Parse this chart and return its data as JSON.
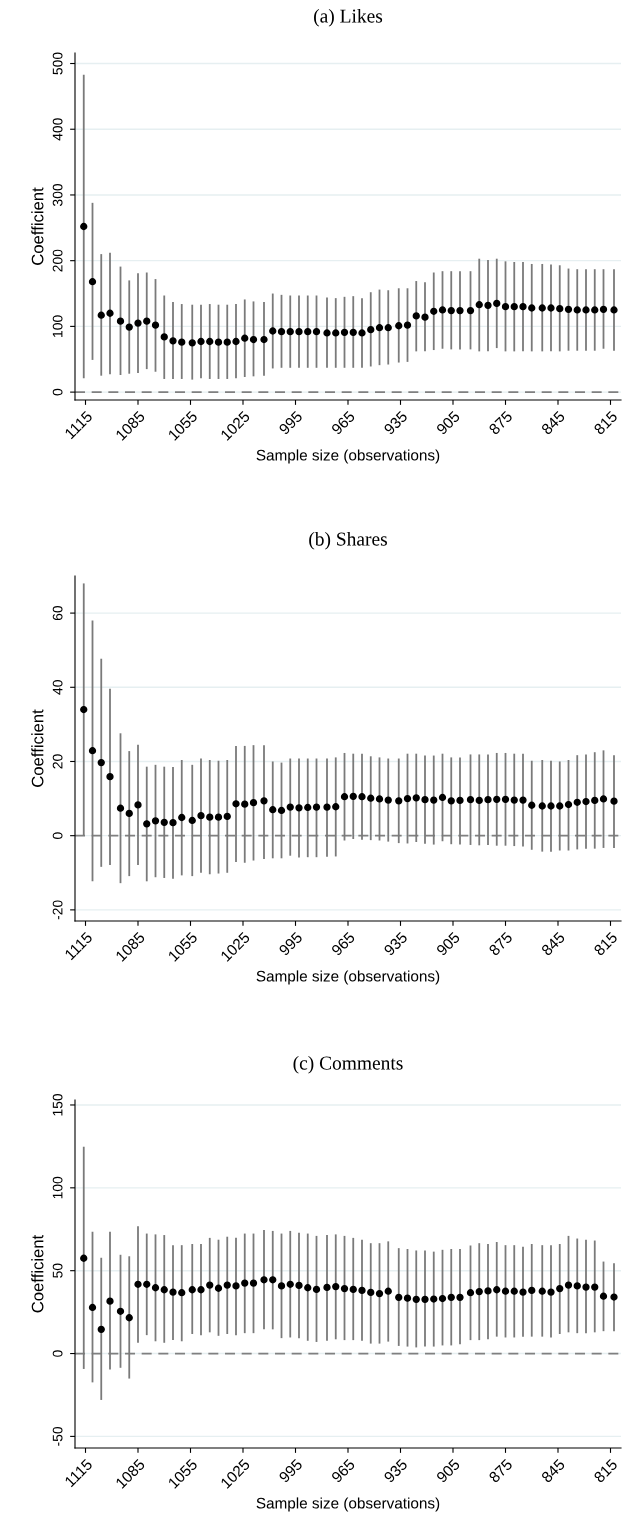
{
  "chart_data": [
    {
      "type": "scatter",
      "title": "(a) Likes",
      "xlabel": "Sample size (observations)",
      "ylabel": "Coefficient",
      "x": [
        1116,
        1111,
        1106,
        1101,
        1095,
        1090,
        1085,
        1080,
        1075,
        1070,
        1065,
        1060,
        1054,
        1049,
        1044,
        1039,
        1034,
        1029,
        1024,
        1019,
        1013,
        1008,
        1003,
        998,
        993,
        988,
        983,
        977,
        972,
        967,
        962,
        957,
        952,
        947,
        942,
        936,
        931,
        926,
        921,
        916,
        911,
        906,
        901,
        895,
        890,
        885,
        880,
        875,
        870,
        865,
        860,
        854,
        849,
        844,
        839,
        834,
        829,
        824,
        819,
        813
      ],
      "series": [
        {
          "color": "#000000",
          "values": [
            252,
            168,
            117,
            120,
            108,
            99,
            105,
            108,
            102,
            84,
            78,
            76,
            75,
            77,
            77,
            76,
            76,
            77,
            82,
            80,
            80,
            93,
            92,
            92,
            92,
            92,
            92,
            90,
            90,
            91,
            91,
            90,
            95,
            98,
            98,
            101,
            102,
            116,
            114,
            123,
            125,
            124,
            124,
            124,
            133,
            132,
            135,
            130,
            130,
            130,
            128,
            128,
            128,
            127,
            126,
            125,
            125,
            125,
            126,
            125
          ],
          "errors": [
            [
              21,
              483
            ],
            [
              49,
              288
            ],
            [
              25,
              210
            ],
            [
              27,
              212
            ],
            [
              26,
              191
            ],
            [
              28,
              170
            ],
            [
              29,
              181
            ],
            [
              35,
              182
            ],
            [
              31,
              172
            ],
            [
              20,
              147
            ],
            [
              20,
              137
            ],
            [
              20,
              134
            ],
            [
              19,
              133
            ],
            [
              21,
              133
            ],
            [
              20,
              134
            ],
            [
              20,
              133
            ],
            [
              20,
              133
            ],
            [
              21,
              134
            ],
            [
              23,
              141
            ],
            [
              24,
              138
            ],
            [
              25,
              137
            ],
            [
              36,
              150
            ],
            [
              37,
              148
            ],
            [
              37,
              147
            ],
            [
              37,
              147
            ],
            [
              37,
              147
            ],
            [
              37,
              147
            ],
            [
              37,
              144
            ],
            [
              37,
              143
            ],
            [
              37,
              145
            ],
            [
              37,
              146
            ],
            [
              37,
              143
            ],
            [
              39,
              152
            ],
            [
              41,
              156
            ],
            [
              42,
              155
            ],
            [
              45,
              158
            ],
            [
              46,
              158
            ],
            [
              62,
              169
            ],
            [
              62,
              167
            ],
            [
              64,
              182
            ],
            [
              66,
              184
            ],
            [
              65,
              184
            ],
            [
              65,
              184
            ],
            [
              65,
              184
            ],
            [
              62,
              203
            ],
            [
              62,
              201
            ],
            [
              67,
              203
            ],
            [
              62,
              199
            ],
            [
              62,
              198
            ],
            [
              62,
              198
            ],
            [
              62,
              195
            ],
            [
              62,
              195
            ],
            [
              62,
              194
            ],
            [
              62,
              193
            ],
            [
              63,
              188
            ],
            [
              63,
              187
            ],
            [
              63,
              187
            ],
            [
              63,
              187
            ],
            [
              66,
              187
            ],
            [
              63,
              187
            ]
          ]
        }
      ],
      "xlim": [
        1121,
        809
      ],
      "xticks": [
        1115,
        1085,
        1055,
        1025,
        995,
        965,
        935,
        905,
        875,
        845,
        815
      ],
      "ylim": [
        -12,
        516
      ],
      "yticks": [
        0,
        100,
        200,
        300,
        400,
        500
      ],
      "ref_lines": [
        {
          "axis": "y",
          "value": 0,
          "color": "#808080",
          "line_style": "dashed"
        }
      ],
      "grid": "y",
      "marker": "circle"
    },
    {
      "type": "scatter",
      "title": "(b) Shares",
      "xlabel": "Sample size (observations)",
      "ylabel": "Coefficient",
      "x": [
        1116,
        1111,
        1106,
        1101,
        1095,
        1090,
        1085,
        1080,
        1075,
        1070,
        1065,
        1060,
        1054,
        1049,
        1044,
        1039,
        1034,
        1029,
        1024,
        1019,
        1013,
        1008,
        1003,
        998,
        993,
        988,
        983,
        977,
        972,
        967,
        962,
        957,
        952,
        947,
        942,
        936,
        931,
        926,
        921,
        916,
        911,
        906,
        901,
        895,
        890,
        885,
        880,
        875,
        870,
        865,
        860,
        854,
        849,
        844,
        839,
        834,
        829,
        824,
        819,
        813
      ],
      "series": [
        {
          "color": "#000000",
          "values": [
            34,
            22.9,
            19.7,
            15.9,
            7.4,
            6,
            8.3,
            3.2,
            4,
            3.6,
            3.5,
            4.9,
            4.1,
            5.4,
            5,
            5,
            5.2,
            8.6,
            8.5,
            8.9,
            9.4,
            7,
            6.8,
            7.7,
            7.5,
            7.6,
            7.7,
            7.7,
            7.8,
            10.5,
            10.6,
            10.5,
            10.1,
            9.9,
            9.6,
            9.4,
            10.0,
            10.2,
            9.7,
            9.6,
            10.3,
            9.4,
            9.5,
            9.7,
            9.5,
            9.7,
            9.8,
            9.8,
            9.6,
            9.6,
            8.2,
            8.0,
            8.0,
            8.0,
            8.4,
            9.0,
            9.2,
            9.5,
            9.9,
            9.3
          ],
          "errors": [
            [
              0,
              68
            ],
            [
              -12.3,
              58
            ],
            [
              -8.4,
              47.7
            ],
            [
              -7.9,
              39.6
            ],
            [
              -12.8,
              27.6
            ],
            [
              -10.9,
              22.8
            ],
            [
              -7.9,
              24.5
            ],
            [
              -12.3,
              18.6
            ],
            [
              -11.2,
              19.1
            ],
            [
              -11.4,
              18.6
            ],
            [
              -11.6,
              18.5
            ],
            [
              -10.7,
              20.4
            ],
            [
              -10.9,
              19.1
            ],
            [
              -10,
              20.8
            ],
            [
              -10.4,
              20.4
            ],
            [
              -10.2,
              20.2
            ],
            [
              -10,
              20.4
            ],
            [
              -7.1,
              24.2
            ],
            [
              -7.3,
              24.2
            ],
            [
              -6.7,
              24.4
            ],
            [
              -6.3,
              24.4
            ],
            [
              -6.1,
              20.0
            ],
            [
              -6.1,
              19.7
            ],
            [
              -5.4,
              20.8
            ],
            [
              -5.9,
              20.8
            ],
            [
              -5.8,
              20.8
            ],
            [
              -5.8,
              20.8
            ],
            [
              -5.7,
              20.8
            ],
            [
              -5.6,
              21.1
            ],
            [
              -1.3,
              22.3
            ],
            [
              -0.9,
              22.1
            ],
            [
              -1.1,
              22.1
            ],
            [
              -1.2,
              21.4
            ],
            [
              -1.3,
              21.1
            ],
            [
              -1.6,
              20.8
            ],
            [
              -2,
              20.8
            ],
            [
              -2.1,
              22.1
            ],
            [
              -1.7,
              22.1
            ],
            [
              -2.2,
              21.6
            ],
            [
              -2.4,
              21.6
            ],
            [
              -1.5,
              22.1
            ],
            [
              -2.3,
              21.1
            ],
            [
              -2.4,
              21.1
            ],
            [
              -2.5,
              21.9
            ],
            [
              -2.6,
              21.9
            ],
            [
              -2.5,
              21.9
            ],
            [
              -2.7,
              22.3
            ],
            [
              -2.7,
              22.3
            ],
            [
              -2.8,
              22.1
            ],
            [
              -2.9,
              22.1
            ],
            [
              -3.8,
              20.2
            ],
            [
              -4.3,
              20.4
            ],
            [
              -4.3,
              20.2
            ],
            [
              -4,
              20
            ],
            [
              -4,
              20.4
            ],
            [
              -3.7,
              21.7
            ],
            [
              -3.5,
              21.9
            ],
            [
              -3.5,
              22.5
            ],
            [
              -3.3,
              23
            ],
            [
              -3.3,
              21.7
            ]
          ]
        }
      ],
      "xlim": [
        1121,
        809
      ],
      "xticks": [
        1115,
        1085,
        1055,
        1025,
        995,
        965,
        935,
        905,
        875,
        845,
        815
      ],
      "ylim": [
        -23,
        70
      ],
      "yticks": [
        -20,
        0,
        20,
        40,
        60
      ],
      "ref_lines": [
        {
          "axis": "y",
          "value": 0,
          "color": "#808080",
          "line_style": "dashed"
        }
      ],
      "grid": "y",
      "marker": "circle"
    },
    {
      "type": "scatter",
      "title": "(c) Comments",
      "xlabel": "Sample size (observations)",
      "ylabel": "Coefficient",
      "x": [
        1116,
        1111,
        1106,
        1101,
        1095,
        1090,
        1085,
        1080,
        1075,
        1070,
        1065,
        1060,
        1054,
        1049,
        1044,
        1039,
        1034,
        1029,
        1024,
        1019,
        1013,
        1008,
        1003,
        998,
        993,
        988,
        983,
        977,
        972,
        967,
        962,
        957,
        952,
        947,
        942,
        936,
        931,
        926,
        921,
        916,
        911,
        906,
        901,
        895,
        890,
        885,
        880,
        875,
        870,
        865,
        860,
        854,
        849,
        844,
        839,
        834,
        829,
        824,
        819,
        813
      ],
      "series": [
        {
          "color": "#000000",
          "values": [
            57.5,
            27.8,
            14.6,
            31.6,
            25.5,
            21.6,
            41.8,
            41.8,
            39.7,
            38.5,
            37.1,
            36.7,
            38.5,
            38.5,
            41.3,
            39.4,
            41.3,
            40.8,
            42.5,
            42.5,
            44.5,
            44.5,
            40.8,
            41.8,
            41.1,
            39.7,
            38.7,
            39.9,
            40.4,
            39.2,
            38.7,
            38.1,
            36.9,
            36.2,
            37.6,
            33.9,
            33.4,
            32.7,
            32.7,
            32.9,
            33.2,
            33.9,
            33.9,
            36.7,
            37.4,
            37.8,
            38.5,
            37.6,
            37.6,
            37.1,
            38.1,
            37.6,
            37.1,
            39.2,
            41.3,
            40.8,
            40.1,
            40.1,
            34.6,
            34.1
          ],
          "errors": [
            [
              -9.3,
              124.8
            ],
            [
              -17.4,
              73.5
            ],
            [
              -28,
              57.8
            ],
            [
              -9.7,
              73.5
            ],
            [
              -8.6,
              59.6
            ],
            [
              -15.1,
              58.7
            ],
            [
              6.5,
              76.8
            ],
            [
              11.1,
              72.4
            ],
            [
              7.4,
              71.9
            ],
            [
              6.5,
              71.5
            ],
            [
              8.1,
              65.4
            ],
            [
              7.4,
              65.4
            ],
            [
              11.8,
              66.1
            ],
            [
              11.1,
              66.1
            ],
            [
              12.8,
              69.8
            ],
            [
              10.7,
              68.7
            ],
            [
              11.8,
              70.5
            ],
            [
              11.1,
              69.8
            ],
            [
              12.3,
              72.4
            ],
            [
              12.3,
              72.4
            ],
            [
              14.6,
              74.5
            ],
            [
              14.6,
              74
            ],
            [
              9.3,
              72.4
            ],
            [
              9.7,
              74
            ],
            [
              9.3,
              72.9
            ],
            [
              7.7,
              72.4
            ],
            [
              7.0,
              71
            ],
            [
              7.7,
              71.5
            ],
            [
              8.6,
              71.9
            ],
            [
              8.1,
              71
            ],
            [
              8.1,
              69.8
            ],
            [
              7.7,
              68.7
            ],
            [
              6.0,
              66.6
            ],
            [
              6.0,
              66.6
            ],
            [
              7.2,
              67.7
            ],
            [
              4.6,
              63.6
            ],
            [
              4.2,
              63.1
            ],
            [
              3.7,
              62.2
            ],
            [
              4.2,
              62.2
            ],
            [
              4.2,
              61.5
            ],
            [
              4.9,
              62.6
            ],
            [
              4.9,
              63.1
            ],
            [
              5.6,
              63.1
            ],
            [
              8.1,
              65.2
            ],
            [
              8.1,
              66.6
            ],
            [
              8.6,
              66.1
            ],
            [
              10.2,
              67.3
            ],
            [
              9.7,
              65.4
            ],
            [
              9.7,
              65.4
            ],
            [
              10.2,
              64.5
            ],
            [
              10.2,
              66.1
            ],
            [
              10.2,
              65.4
            ],
            [
              9.7,
              65.4
            ],
            [
              11.8,
              66.1
            ],
            [
              12.8,
              71
            ],
            [
              12.3,
              69.4
            ],
            [
              12.3,
              68.7
            ],
            [
              12.8,
              68.2
            ],
            [
              13.5,
              55.5
            ],
            [
              13.5,
              54.5
            ]
          ]
        }
      ],
      "xlim": [
        1121,
        809
      ],
      "xticks": [
        1115,
        1085,
        1055,
        1025,
        995,
        965,
        935,
        905,
        875,
        845,
        815
      ],
      "ylim": [
        -57,
        153
      ],
      "yticks": [
        -50,
        0,
        50,
        100,
        150
      ],
      "ref_lines": [
        {
          "axis": "y",
          "value": 0,
          "color": "#808080",
          "line_style": "dashed"
        }
      ],
      "grid": "y",
      "marker": "circle"
    }
  ]
}
